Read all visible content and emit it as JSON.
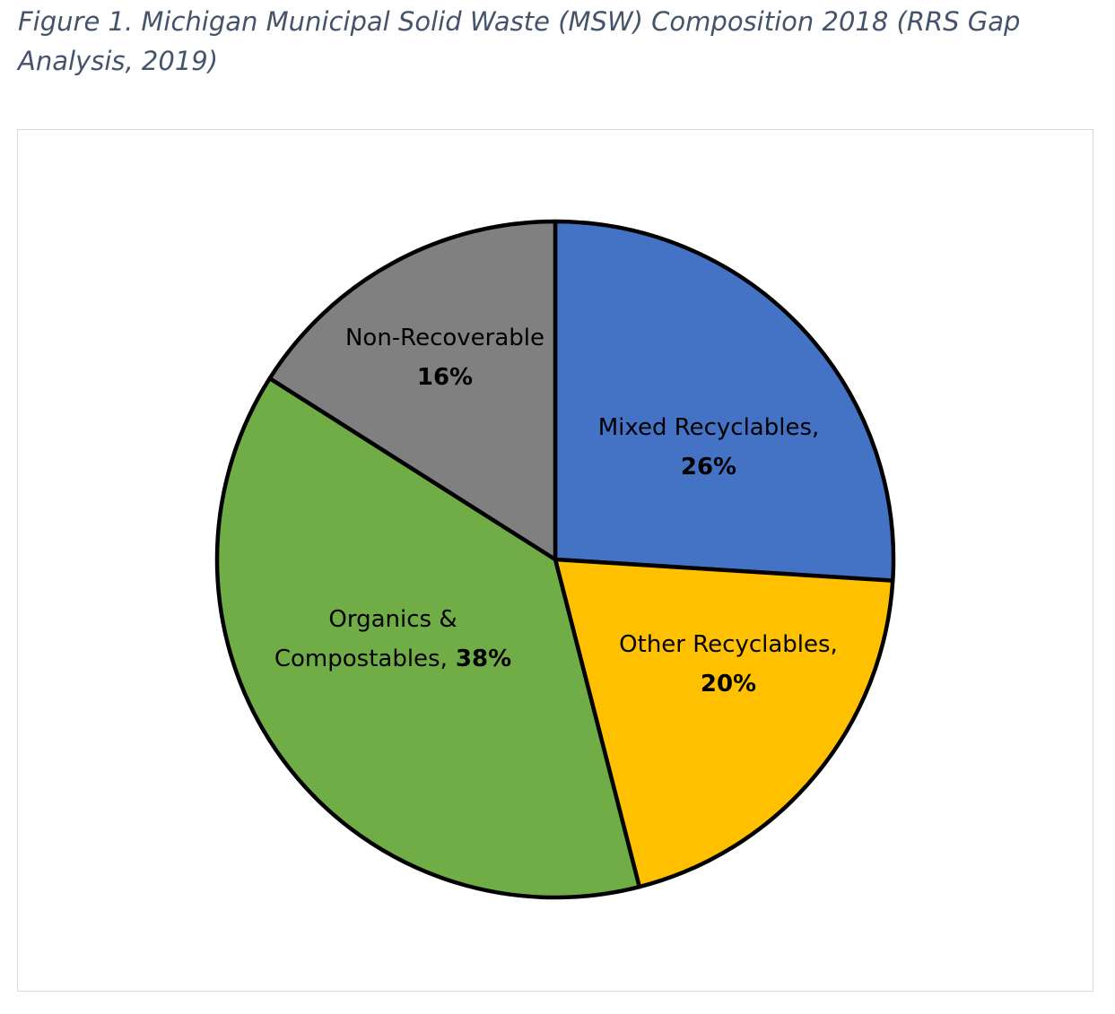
{
  "figure": {
    "caption": "Figure 1. Michigan Municipal Solid Waste (MSW) Composition 2018 (RRS Gap Analysis, 2019)"
  },
  "chart_data": {
    "type": "pie",
    "title": "",
    "unit": "%",
    "slices": [
      {
        "name": "Mixed Recyclables,",
        "value": 26,
        "value_label": "26%",
        "color": "#4472c4"
      },
      {
        "name": "Other Recyclables,",
        "value": 20,
        "value_label": "20%",
        "color": "#ffc000"
      },
      {
        "name": "Organics & Compostables,",
        "value": 38,
        "value_label": "38%",
        "color": "#70ad47"
      },
      {
        "name": "Non-Recoverable",
        "value": 16,
        "value_label": "16%",
        "color": "#808080"
      }
    ],
    "start_angle": "12 o'clock",
    "direction": "clockwise",
    "legend": "none",
    "data_labels": "inside slices"
  }
}
